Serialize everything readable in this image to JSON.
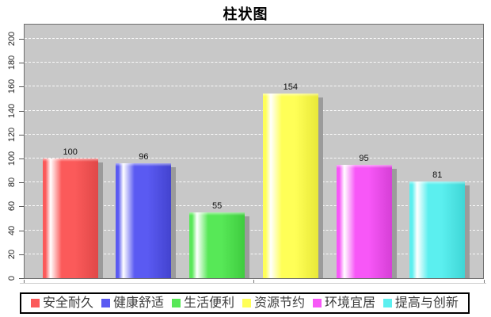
{
  "title": "柱状图",
  "chart_data": {
    "type": "bar",
    "title": "柱状图",
    "categories": [
      "安全耐久",
      "健康舒适",
      "生活便利",
      "资源节约",
      "环境宜居",
      "提高与创新"
    ],
    "values": [
      100,
      96,
      55,
      154,
      95,
      81
    ],
    "bar_colors": [
      "#fb5a5a",
      "#5a5af2",
      "#57e857",
      "#ffff57",
      "#f757f7",
      "#5befef"
    ],
    "bar_dark_colors": [
      "#e04848",
      "#4343cf",
      "#3fcc3f",
      "#e8e838",
      "#d63fd6",
      "#3fd6d6"
    ],
    "yticks": [
      0,
      20,
      40,
      60,
      80,
      100,
      120,
      140,
      160,
      180,
      200
    ],
    "ylim": [
      0,
      213
    ],
    "xlabel": "",
    "ylabel": "",
    "grid": "horizontal white dashed lines on gray panel",
    "legend_position": "bottom",
    "plot_bg": "#c8c8c8",
    "shadow_color": "#9b9b9b"
  }
}
